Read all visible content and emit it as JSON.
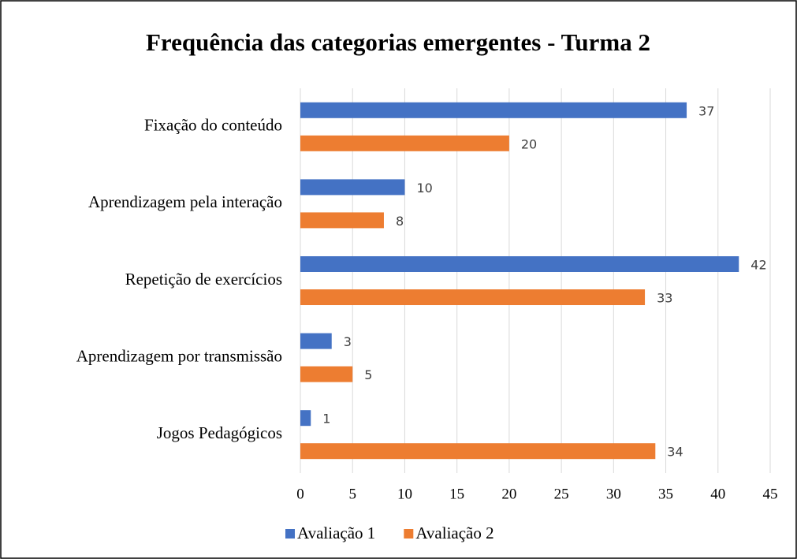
{
  "chart_data": {
    "type": "barh",
    "title": "Frequência das categorias emergentes - Turma 2",
    "categories": [
      "Fixação do conteúdo",
      "Aprendizagem pela interação",
      "Repetição de exercícios",
      "Aprendizagem por transmissão",
      "Jogos Pedagógicos"
    ],
    "series": [
      {
        "name": "Avaliação 1",
        "color": "#4472c4",
        "values": [
          37,
          10,
          42,
          3,
          1
        ]
      },
      {
        "name": "Avaliação 2",
        "color": "#ed7d31",
        "values": [
          20,
          8,
          33,
          5,
          34
        ]
      }
    ],
    "xlim": [
      0,
      45
    ],
    "xticks": [
      0,
      5,
      10,
      15,
      20,
      25,
      30,
      35,
      40,
      45
    ],
    "grid": true,
    "legend": "bottom"
  }
}
